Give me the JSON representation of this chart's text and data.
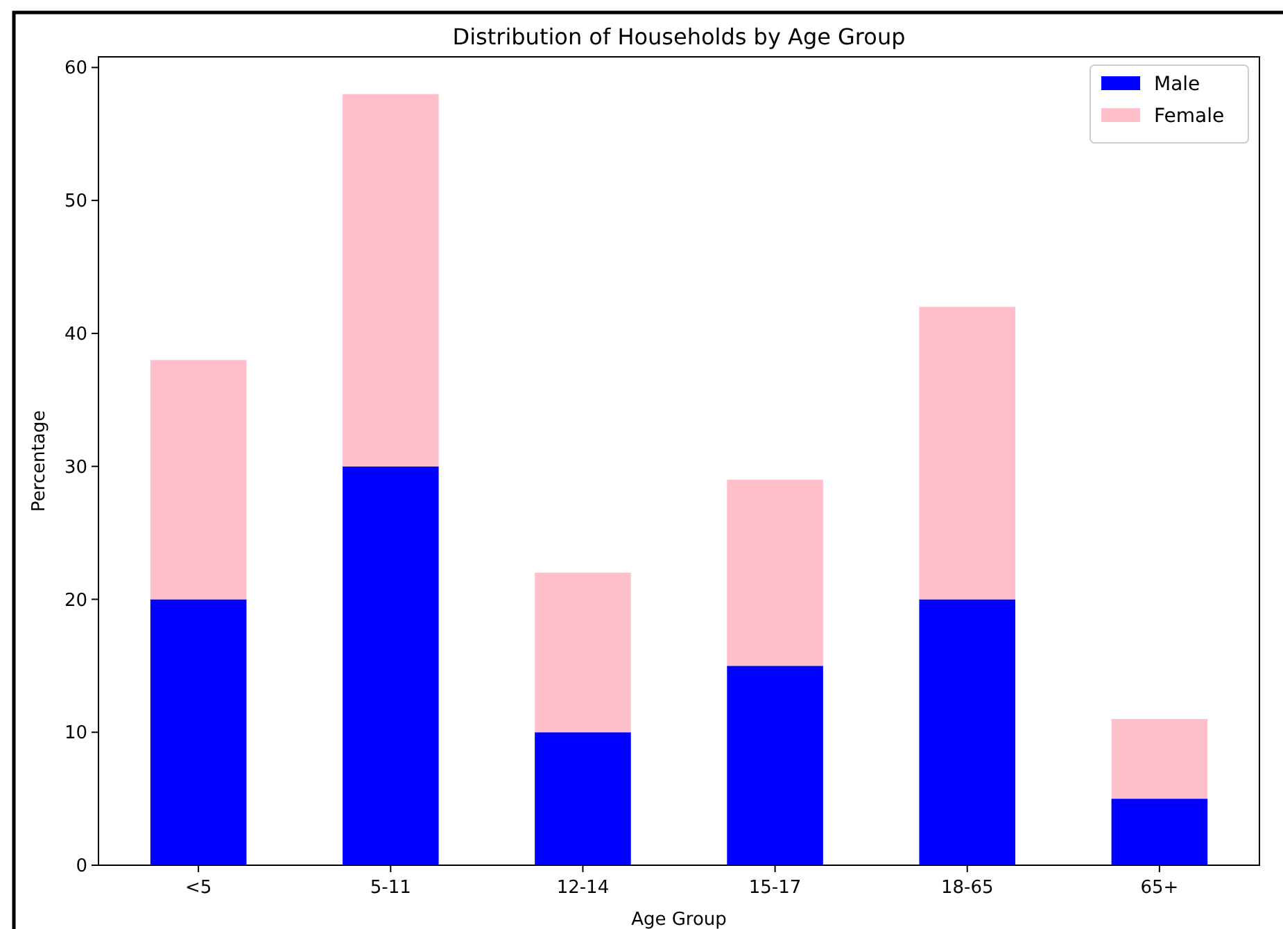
{
  "chart_data": {
    "type": "bar",
    "title": "Distribution of Households by Age Group",
    "xlabel": "Age Group",
    "ylabel": "Percentage",
    "categories": [
      "<5",
      "5-11",
      "12-14",
      "15-17",
      "18-65",
      "65+"
    ],
    "stacked": true,
    "series": [
      {
        "name": "Male",
        "color": "#0000ff",
        "values": [
          20,
          30,
          10,
          15,
          20,
          5
        ]
      },
      {
        "name": "Female",
        "color": "#ffc0cb",
        "values": [
          18,
          28,
          12,
          14,
          22,
          6
        ]
      }
    ],
    "ylim": [
      0,
      60.8
    ],
    "yticks": [
      0,
      10,
      20,
      30,
      40,
      50,
      60
    ],
    "legend": "top right"
  }
}
